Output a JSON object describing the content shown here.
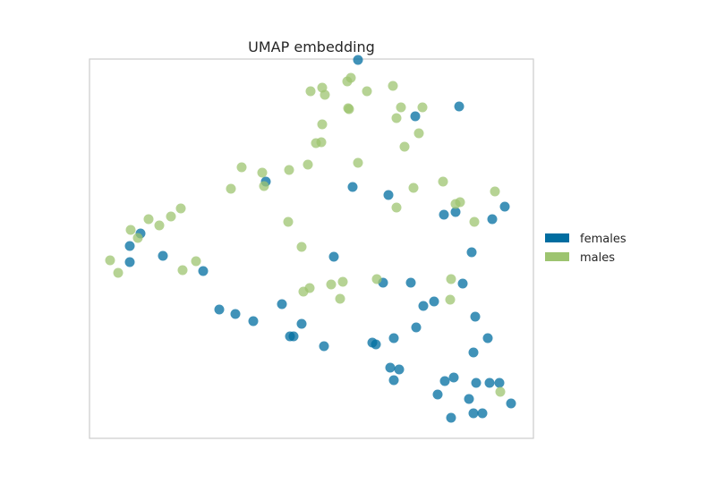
{
  "chart_data": {
    "type": "scatter",
    "title": "UMAP embedding",
    "xlabel": "",
    "ylabel": "",
    "xlim": [
      0,
      496
    ],
    "ylim": [
      0,
      424
    ],
    "grid": false,
    "axis_ticks": false,
    "legend_position": "right",
    "series": [
      {
        "name": "females",
        "color": "#006DA0",
        "points": [
          [
            300,
            423
          ],
          [
            413,
            371
          ],
          [
            364,
            360
          ],
          [
            197,
            287
          ],
          [
            294,
            281
          ],
          [
            334,
            272
          ],
          [
            464,
            259
          ],
          [
            409,
            253
          ],
          [
            396,
            250
          ],
          [
            450,
            245
          ],
          [
            45,
            215
          ],
          [
            57,
            229
          ],
          [
            45,
            197
          ],
          [
            82,
            204
          ],
          [
            127,
            187
          ],
          [
            273,
            203
          ],
          [
            427,
            208
          ],
          [
            328,
            174
          ],
          [
            359,
            174
          ],
          [
            417,
            173
          ],
          [
            385,
            153
          ],
          [
            373,
            148
          ],
          [
            145,
            144
          ],
          [
            163,
            139
          ],
          [
            183,
            131
          ],
          [
            215,
            150
          ],
          [
            237,
            128
          ],
          [
            228,
            114
          ],
          [
            224,
            114
          ],
          [
            262,
            103
          ],
          [
            316,
            107
          ],
          [
            320,
            105
          ],
          [
            340,
            112
          ],
          [
            365,
            124
          ],
          [
            431,
            136
          ],
          [
            445,
            112
          ],
          [
            429,
            96
          ],
          [
            336,
            79
          ],
          [
            346,
            77
          ],
          [
            340,
            65
          ],
          [
            407,
            68
          ],
          [
            397,
            64
          ],
          [
            432,
            62
          ],
          [
            447,
            62
          ],
          [
            458,
            62
          ],
          [
            389,
            49
          ],
          [
            424,
            44
          ],
          [
            471,
            39
          ],
          [
            439,
            28
          ],
          [
            429,
            28
          ],
          [
            404,
            23
          ]
        ]
      },
      {
        "name": "males",
        "color": "#9DC470",
        "points": [
          [
            292,
            403
          ],
          [
            288,
            399
          ],
          [
            260,
            392
          ],
          [
            310,
            388
          ],
          [
            339,
            394
          ],
          [
            247,
            388
          ],
          [
            263,
            384
          ],
          [
            290,
            368
          ],
          [
            348,
            370
          ],
          [
            343,
            358
          ],
          [
            289,
            369
          ],
          [
            372,
            370
          ],
          [
            260,
            351
          ],
          [
            253,
            330
          ],
          [
            259,
            331
          ],
          [
            368,
            341
          ],
          [
            244,
            306
          ],
          [
            352,
            326
          ],
          [
            300,
            308
          ],
          [
            223,
            300
          ],
          [
            170,
            303
          ],
          [
            193,
            297
          ],
          [
            158,
            279
          ],
          [
            195,
            282
          ],
          [
            222,
            242
          ],
          [
            395,
            287
          ],
          [
            362,
            280
          ],
          [
            343,
            258
          ],
          [
            409,
            262
          ],
          [
            414,
            264
          ],
          [
            453,
            276
          ],
          [
            430,
            242
          ],
          [
            102,
            257
          ],
          [
            91,
            248
          ],
          [
            78,
            238
          ],
          [
            66,
            245
          ],
          [
            46,
            233
          ],
          [
            54,
            224
          ],
          [
            23,
            199
          ],
          [
            32,
            185
          ],
          [
            119,
            198
          ],
          [
            104,
            188
          ],
          [
            237,
            214
          ],
          [
            283,
            175
          ],
          [
            270,
            172
          ],
          [
            246,
            168
          ],
          [
            239,
            164
          ],
          [
            280,
            156
          ],
          [
            321,
            178
          ],
          [
            404,
            178
          ],
          [
            403,
            155
          ],
          [
            459,
            52
          ]
        ]
      }
    ]
  }
}
